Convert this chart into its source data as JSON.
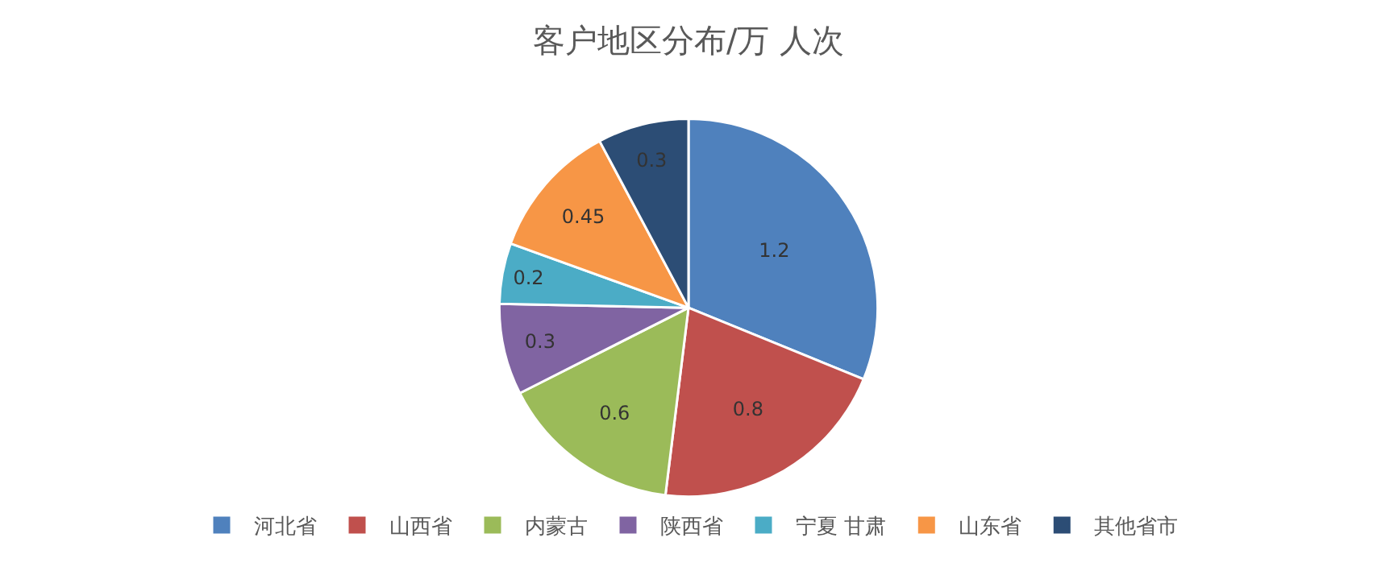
{
  "chart_data": {
    "type": "pie",
    "title": "客户地区分布/万 人次",
    "categories": [
      "河北省",
      "山西省",
      "内蒙古",
      "陕西省",
      "宁夏 甘肃",
      "山东省",
      "其他省市"
    ],
    "values": [
      1.2,
      0.8,
      0.6,
      0.3,
      0.2,
      0.45,
      0.3
    ],
    "colors": [
      "#4f81bd",
      "#c0504d",
      "#9bbb59",
      "#8064a2",
      "#4bacc6",
      "#f79646",
      "#2c4d75"
    ],
    "data_labels": true,
    "legend": "bottom"
  }
}
